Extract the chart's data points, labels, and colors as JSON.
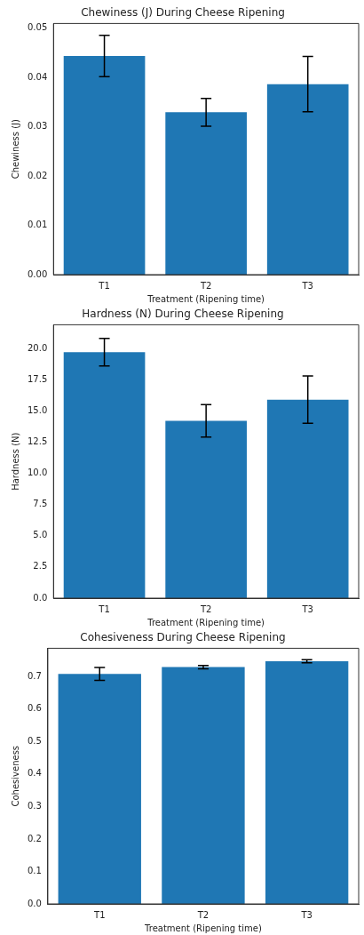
{
  "chart_data": [
    {
      "type": "bar",
      "title": "Chewiness (J) During Cheese Ripening",
      "xlabel": "Treatment (Ripening time)",
      "ylabel": "Chewiness (J)",
      "categories": [
        "T1",
        "T2",
        "T3"
      ],
      "values": [
        0.0443,
        0.0329,
        0.0386
      ],
      "errors": [
        0.0042,
        0.0028,
        0.0056
      ],
      "color": "#1f77b4",
      "ylim": [
        0,
        0.0509
      ],
      "yticks": [
        {
          "value": 0,
          "label": "0.00"
        },
        {
          "value": 0.01,
          "label": "0.01"
        },
        {
          "value": 0.02,
          "label": "0.02"
        },
        {
          "value": 0.03,
          "label": "0.03"
        },
        {
          "value": 0.04,
          "label": "0.04"
        },
        {
          "value": 0.05,
          "label": "0.05"
        }
      ],
      "grid": false
    },
    {
      "type": "bar",
      "title": "Hardness (N) During Cheese Ripening",
      "xlabel": "Treatment (Ripening time)",
      "ylabel": "Hardness (N)",
      "categories": [
        "T1",
        "T2",
        "T3"
      ],
      "values": [
        19.7,
        14.2,
        15.9
      ],
      "errors": [
        1.1,
        1.3,
        1.9
      ],
      "color": "#1f77b4",
      "ylim": [
        0,
        21.9
      ],
      "yticks": [
        {
          "value": 0,
          "label": "0.0"
        },
        {
          "value": 2.5,
          "label": "2.5"
        },
        {
          "value": 5,
          "label": "5.0"
        },
        {
          "value": 7.5,
          "label": "7.5"
        },
        {
          "value": 10,
          "label": "10.0"
        },
        {
          "value": 12.5,
          "label": "12.5"
        },
        {
          "value": 15,
          "label": "15.0"
        },
        {
          "value": 17.5,
          "label": "17.5"
        },
        {
          "value": 20,
          "label": "20.0"
        }
      ],
      "grid": false
    },
    {
      "type": "bar",
      "title": "Cohesiveness During Cheese Ripening",
      "xlabel": "Treatment (Ripening time)",
      "ylabel": "Cohesiveness",
      "categories": [
        "T1",
        "T2",
        "T3"
      ],
      "values": [
        0.708,
        0.729,
        0.747
      ],
      "errors": [
        0.02,
        0.005,
        0.005
      ],
      "color": "#1f77b4",
      "ylim": [
        0,
        0.787
      ],
      "yticks": [
        {
          "value": 0,
          "label": "0.0"
        },
        {
          "value": 0.1,
          "label": "0.1"
        },
        {
          "value": 0.2,
          "label": "0.2"
        },
        {
          "value": 0.3,
          "label": "0.3"
        },
        {
          "value": 0.4,
          "label": "0.4"
        },
        {
          "value": 0.5,
          "label": "0.5"
        },
        {
          "value": 0.6,
          "label": "0.6"
        },
        {
          "value": 0.7,
          "label": "0.7"
        }
      ],
      "grid": false
    }
  ]
}
